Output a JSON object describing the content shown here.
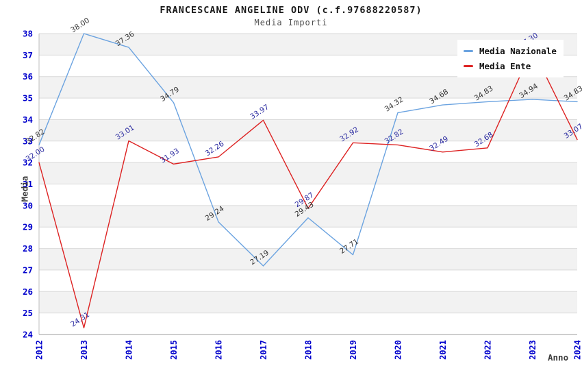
{
  "chart_data": {
    "type": "line",
    "title": "FRANCESCANE ANGELINE ODV (c.f.97688220587)",
    "subtitle": "Media Importi",
    "xlabel": "Anno",
    "ylabel": "Media",
    "x": [
      "2012",
      "2013",
      "2014",
      "2015",
      "2016",
      "2017",
      "2018",
      "2019",
      "2020",
      "2021",
      "2022",
      "2023",
      "2024"
    ],
    "ylim": [
      24,
      38
    ],
    "ytick_step": 1,
    "grid": "horizontal gridlines with alternating gray bands",
    "band_color": "#f2f2f2",
    "gridline_color": "#d9d9d9",
    "tick_color": "#0000cc",
    "legend_position": "top-right",
    "series": [
      {
        "name": "Media Nazionale",
        "color": "#6ba3e0",
        "label_color": "#333333",
        "values": [
          32.82,
          38.0,
          37.36,
          34.79,
          29.24,
          27.19,
          29.43,
          27.71,
          34.32,
          34.68,
          34.83,
          34.94,
          34.83
        ]
      },
      {
        "name": "Media Ente",
        "color": "#dd2222",
        "label_color": "#2a2aa0",
        "values": [
          32.0,
          24.31,
          33.01,
          31.93,
          32.26,
          33.97,
          29.87,
          32.92,
          32.82,
          32.49,
          32.68,
          37.3,
          33.07
        ]
      }
    ]
  }
}
